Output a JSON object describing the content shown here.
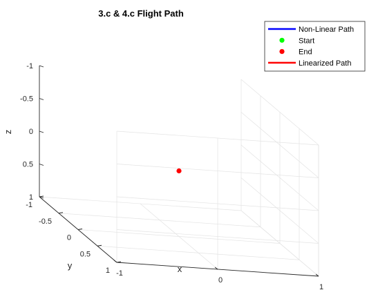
{
  "chart_data": {
    "type": "line3d",
    "title": "3.c & 4.c Flight Path",
    "xlabel": "x",
    "ylabel": "y",
    "zlabel": "z",
    "xlim": [
      -1,
      1
    ],
    "ylim": [
      -1,
      1
    ],
    "zlim": [
      -1,
      1
    ],
    "z_direction": "reverse",
    "grid": true,
    "x_ticks": [
      -1,
      0,
      1
    ],
    "x_tick_labels": [
      "-1",
      "0",
      "1"
    ],
    "y_ticks": [
      -1,
      -0.5,
      0,
      0.5,
      1
    ],
    "y_tick_labels": [
      "-1",
      "-0.5",
      "0",
      "0.5",
      "1"
    ],
    "z_ticks": [
      -1,
      -0.5,
      0,
      0.5,
      1
    ],
    "z_tick_labels": [
      "-1",
      "-0.5",
      "0",
      "0.5",
      "1"
    ],
    "legend_position": "top-right",
    "series": [
      {
        "name": "Non-Linear Path",
        "kind": "line",
        "color": "#0000ff",
        "points": []
      },
      {
        "name": "Start",
        "kind": "marker",
        "color": "#00ff00",
        "points": []
      },
      {
        "name": "End",
        "kind": "marker",
        "color": "#ff0000",
        "points": [
          [
            0,
            0,
            0
          ]
        ]
      },
      {
        "name": "Linearized Path",
        "kind": "line",
        "color": "#ff0000",
        "points": []
      }
    ]
  }
}
